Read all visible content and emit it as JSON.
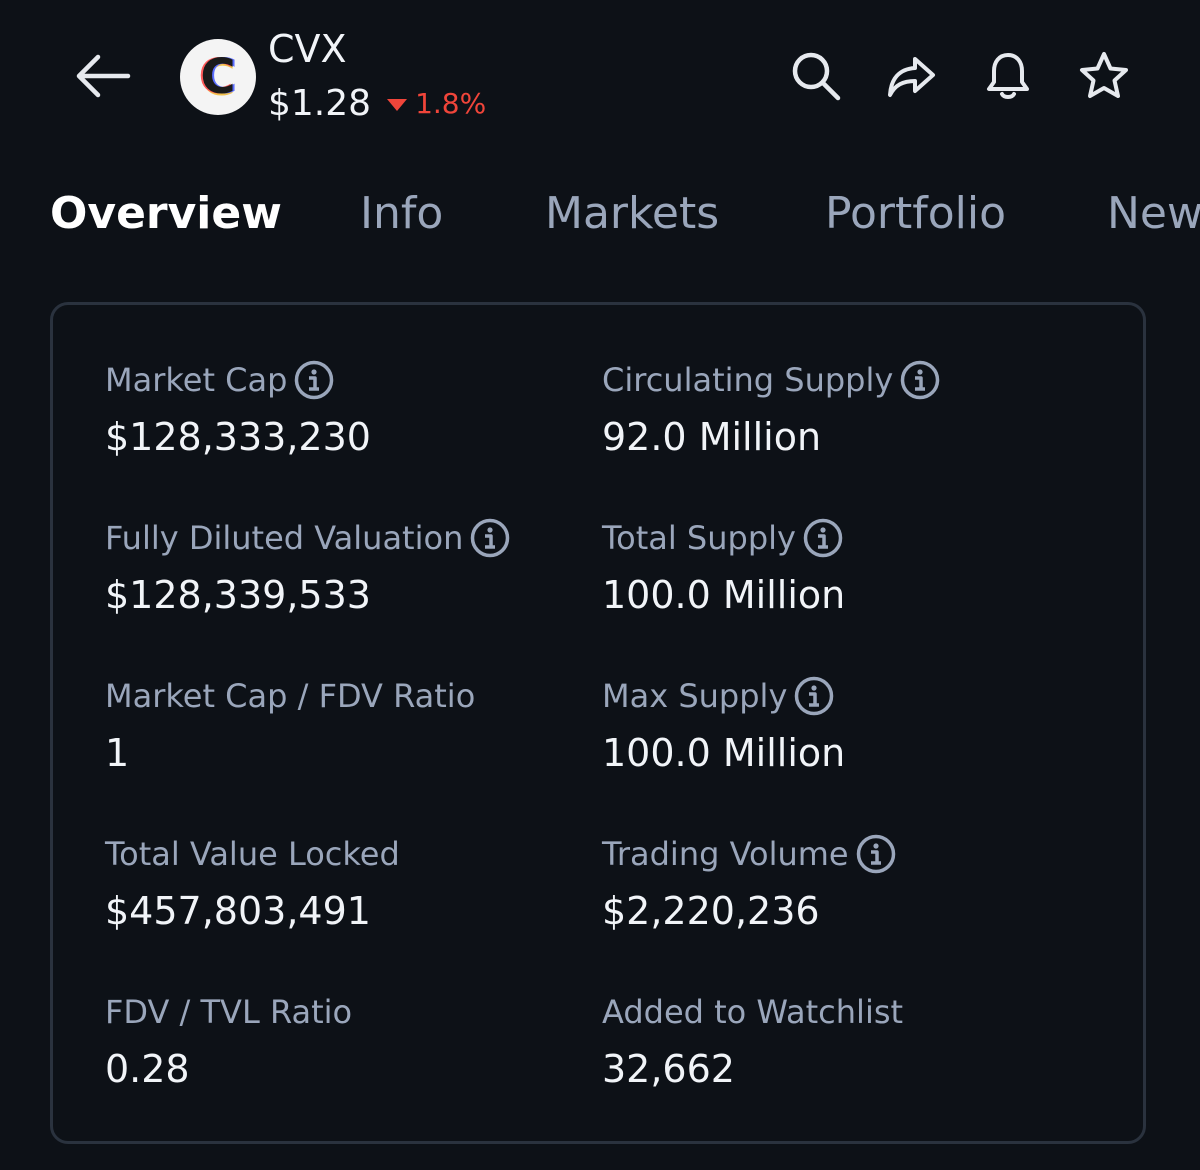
{
  "header": {
    "symbol": "CVX",
    "price": "$1.28",
    "change": "1.8%",
    "logo_letter": "C",
    "icons": {
      "back": "back-arrow-icon",
      "search": "search-icon",
      "share": "share-icon",
      "alert": "bell-icon",
      "watch": "star-icon"
    }
  },
  "tabs": [
    {
      "label": "Overview",
      "active": true
    },
    {
      "label": "Info"
    },
    {
      "label": "Markets"
    },
    {
      "label": "Portfolio"
    },
    {
      "label": "New"
    }
  ],
  "stats": [
    {
      "label": "Market Cap",
      "value": "$128,333,230",
      "info": true
    },
    {
      "label": "Circulating Supply",
      "value": "92.0 Million",
      "info": true
    },
    {
      "label": "Fully Diluted Valuation",
      "value": "$128,339,533",
      "info": true
    },
    {
      "label": "Total Supply",
      "value": "100.0 Million",
      "info": true
    },
    {
      "label": "Market Cap / FDV Ratio",
      "value": "1",
      "info": false
    },
    {
      "label": "Max Supply",
      "value": "100.0 Million",
      "info": true
    },
    {
      "label": "Total Value Locked",
      "value": "$457,803,491",
      "info": false
    },
    {
      "label": "Trading Volume",
      "value": "$2,220,236",
      "info": true
    },
    {
      "label": "FDV / TVL Ratio",
      "value": "0.28",
      "info": false
    },
    {
      "label": "Added to Watchlist",
      "value": "32,662",
      "info": false
    }
  ],
  "colors": {
    "background": "#0d1117",
    "negative": "#f0453a",
    "muted_text": "#9aa6bb",
    "card_border": "#2a323e"
  }
}
